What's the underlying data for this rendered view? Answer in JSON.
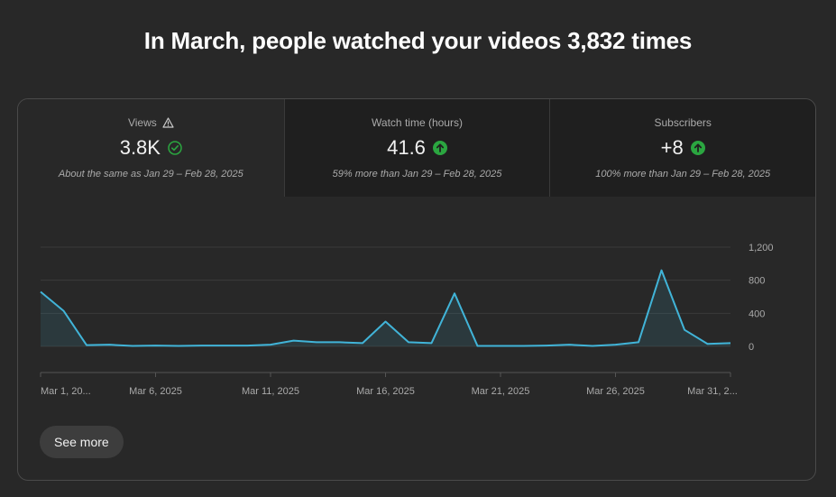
{
  "headline": "In March, people watched your videos 3,832 times",
  "metrics": [
    {
      "label": "Views",
      "value": "3.8K",
      "compare": "About the same as Jan 29 – Feb 28, 2025",
      "status_icon": "check-circle-icon",
      "label_icon": "warning-triangle-icon"
    },
    {
      "label": "Watch time (hours)",
      "value": "41.6",
      "compare": "59% more than Jan 29 – Feb 28, 2025",
      "status_icon": "arrow-up-circle-icon"
    },
    {
      "label": "Subscribers",
      "value": "+8",
      "compare": "100% more than Jan 29 – Feb 28, 2025",
      "status_icon": "arrow-up-circle-icon"
    }
  ],
  "colors": {
    "line": "#41b4d8",
    "up_green": "#2ba640",
    "check_green": "#2ba640"
  },
  "see_more": "See more",
  "chart_data": {
    "type": "area",
    "x": [
      "Mar 1",
      "Mar 2",
      "Mar 3",
      "Mar 4",
      "Mar 5",
      "Mar 6",
      "Mar 7",
      "Mar 8",
      "Mar 9",
      "Mar 10",
      "Mar 11",
      "Mar 12",
      "Mar 13",
      "Mar 14",
      "Mar 15",
      "Mar 16",
      "Mar 17",
      "Mar 18",
      "Mar 19",
      "Mar 20",
      "Mar 21",
      "Mar 22",
      "Mar 23",
      "Mar 24",
      "Mar 25",
      "Mar 26",
      "Mar 27",
      "Mar 28",
      "Mar 29",
      "Mar 30",
      "Mar 31"
    ],
    "values": [
      660,
      430,
      15,
      20,
      5,
      10,
      5,
      10,
      10,
      10,
      20,
      70,
      50,
      50,
      40,
      300,
      50,
      40,
      640,
      5,
      5,
      5,
      10,
      20,
      5,
      20,
      50,
      920,
      200,
      30,
      40
    ],
    "x_tick_labels": [
      "Mar 1, 20...",
      "Mar 6, 2025",
      "Mar 11, 2025",
      "Mar 16, 2025",
      "Mar 21, 2025",
      "Mar 26, 2025",
      "Mar 31, 2..."
    ],
    "x_tick_index": [
      0,
      5,
      10,
      15,
      20,
      25,
      30
    ],
    "y_ticks": [
      "0",
      "400",
      "800",
      "1,200"
    ],
    "y_tick_values": [
      0,
      400,
      800,
      1200
    ],
    "ylim": [
      0,
      1200
    ],
    "grid": true
  }
}
